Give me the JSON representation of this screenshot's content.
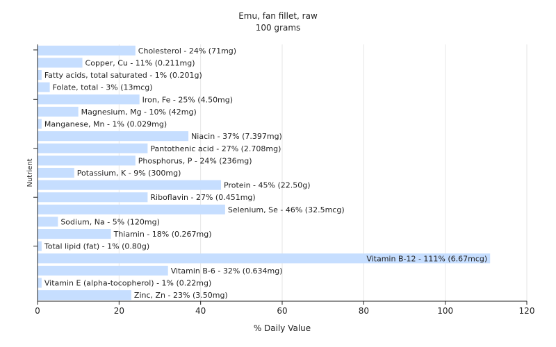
{
  "chart_data": {
    "type": "bar",
    "orientation": "horizontal",
    "title": "Emu, fan fillet, raw",
    "subtitle": "100 grams",
    "xlabel": "% Daily Value",
    "ylabel": "Nutrient",
    "xlim": [
      0,
      120
    ],
    "xticks": [
      0,
      20,
      40,
      60,
      80,
      100,
      120
    ],
    "grid": true,
    "bar_color": "#c6deff",
    "categories": [
      "Cholesterol",
      "Copper, Cu",
      "Fatty acids, total saturated",
      "Folate, total",
      "Iron, Fe",
      "Magnesium, Mg",
      "Manganese, Mn",
      "Niacin",
      "Pantothenic acid",
      "Phosphorus, P",
      "Potassium, K",
      "Protein",
      "Riboflavin",
      "Selenium, Se",
      "Sodium, Na",
      "Thiamin",
      "Total lipid (fat)",
      "Vitamin B-12",
      "Vitamin B-6",
      "Vitamin E (alpha-tocopherol)",
      "Zinc, Zn"
    ],
    "values": [
      24,
      11,
      1,
      3,
      25,
      10,
      1,
      37,
      27,
      24,
      9,
      45,
      27,
      46,
      5,
      18,
      1,
      111,
      32,
      1,
      23
    ],
    "labels": [
      "Cholesterol - 24% (71mg)",
      "Copper, Cu - 11% (0.211mg)",
      "Fatty acids, total saturated - 1% (0.201g)",
      "Folate, total - 3% (13mcg)",
      "Iron, Fe - 25% (4.50mg)",
      "Magnesium, Mg - 10% (42mg)",
      "Manganese, Mn - 1% (0.029mg)",
      "Niacin - 37% (7.397mg)",
      "Pantothenic acid - 27% (2.708mg)",
      "Phosphorus, P - 24% (236mg)",
      "Potassium, K - 9% (300mg)",
      "Protein - 45% (22.50g)",
      "Riboflavin - 27% (0.451mg)",
      "Selenium, Se - 46% (32.5mcg)",
      "Sodium, Na - 5% (120mg)",
      "Thiamin - 18% (0.267mg)",
      "Total lipid (fat) - 1% (0.80g)",
      "Vitamin B-12 - 111% (6.67mcg)",
      "Vitamin B-6 - 32% (0.634mg)",
      "Vitamin E (alpha-tocopherol) - 1% (0.22mg)",
      "Zinc, Zn - 23% (3.50mg)"
    ]
  }
}
